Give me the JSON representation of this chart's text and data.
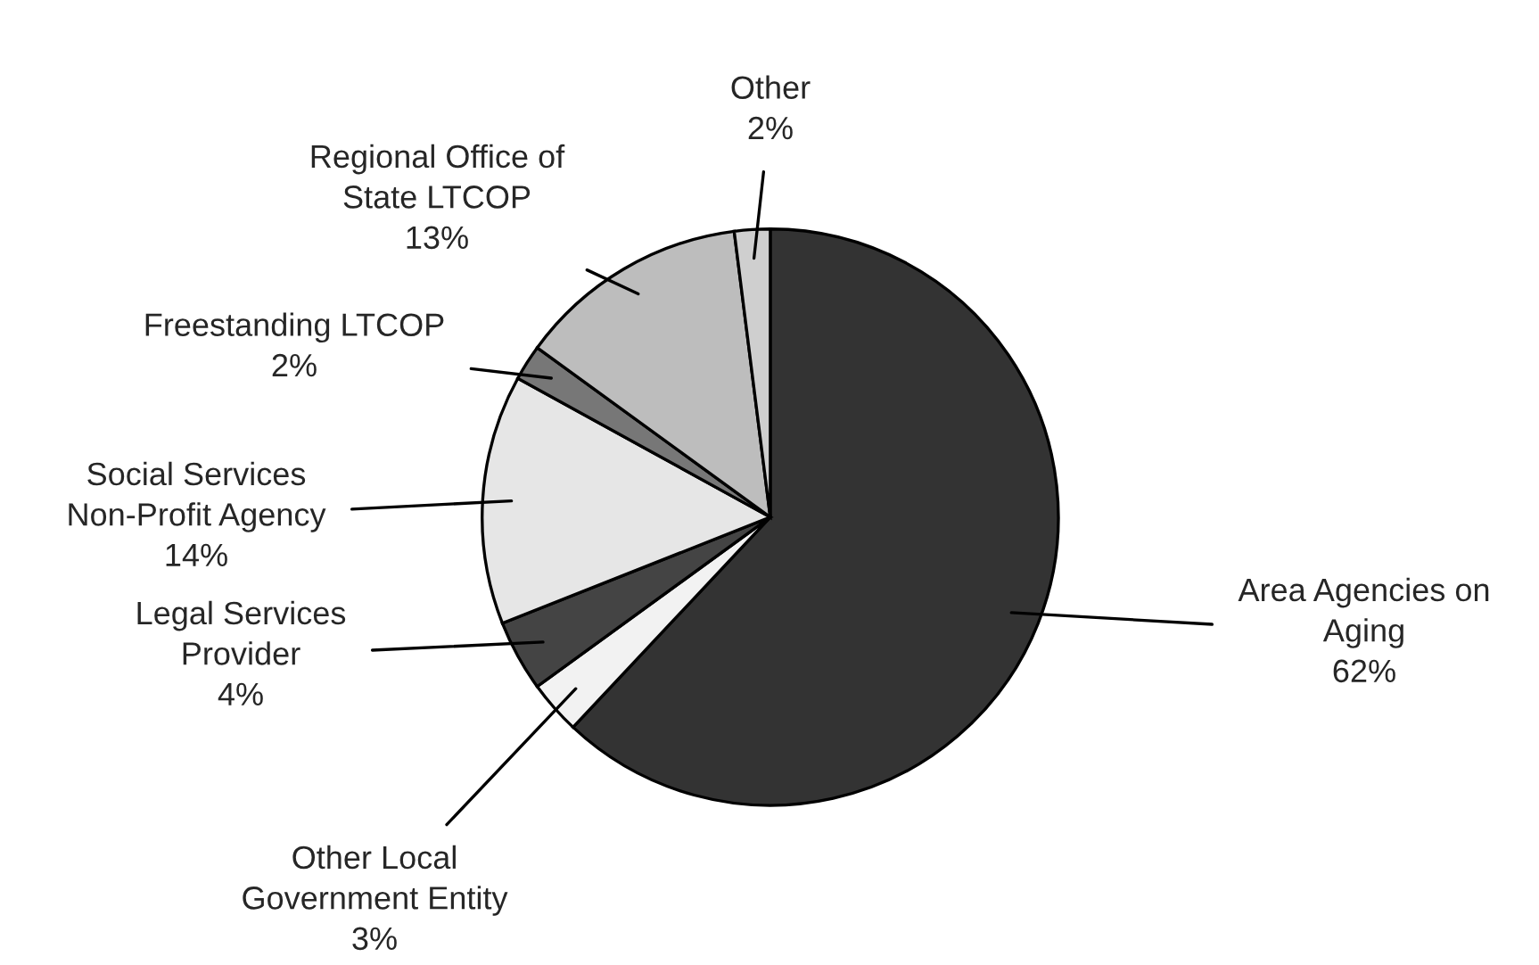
{
  "chart_data": {
    "type": "pie",
    "categories": [
      "Area Agencies on\nAging",
      "Other Local\nGovernment Entity",
      "Legal Services\nProvider",
      "Social Services\nNon-Profit Agency",
      "Freestanding LTCOP",
      "Regional Office of\nState LTCOP",
      "Other"
    ],
    "values": [
      62,
      3,
      4,
      14,
      2,
      13,
      2
    ],
    "value_labels": [
      "62%",
      "3%",
      "4%",
      "14%",
      "2%",
      "13%",
      "2%"
    ],
    "colors": [
      "#333333",
      "#f2f2f2",
      "#444444",
      "#e6e6e6",
      "#777777",
      "#bdbdbd",
      "#cfcfcf"
    ],
    "legend": false
  }
}
